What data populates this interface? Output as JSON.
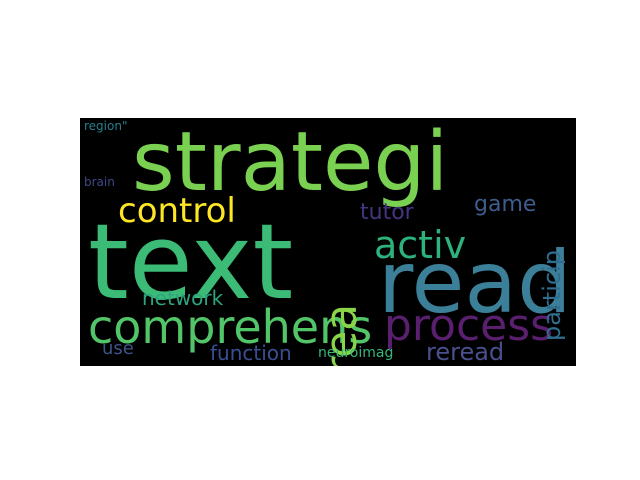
{
  "words": {
    "text": {
      "label": "text",
      "color": "#3bbb75"
    },
    "strategi": {
      "label": "strategi",
      "color": "#7ad151"
    },
    "read": {
      "label": "read",
      "color": "#3b7f98"
    },
    "comprehens": {
      "label": "comprehens",
      "color": "#52c569"
    },
    "process": {
      "label": "process",
      "color": "#5a1f6e"
    },
    "control": {
      "label": "control",
      "color": "#fde725"
    },
    "activ": {
      "label": "activ",
      "color": "#2db27d"
    },
    "area": {
      "label": "area",
      "color": "#8ad547"
    },
    "particip": {
      "label": "particip",
      "color": "#2f6d8e"
    },
    "tutor": {
      "label": "tutor",
      "color": "#463480"
    },
    "game": {
      "label": "game",
      "color": "#3e5c8c"
    },
    "network": {
      "label": "network",
      "color": "#2ea57f"
    },
    "reread": {
      "label": "reread",
      "color": "#4a4f8e"
    },
    "function": {
      "label": "function",
      "color": "#3a4f93"
    },
    "use": {
      "label": "use",
      "color": "#3b5486"
    },
    "neuroimag": {
      "label": "neuroimag",
      "color": "#35b779"
    },
    "region": {
      "label": "region\"",
      "color": "#2a7f8e"
    },
    "brain": {
      "label": "brain",
      "color": "#3f4889"
    }
  }
}
